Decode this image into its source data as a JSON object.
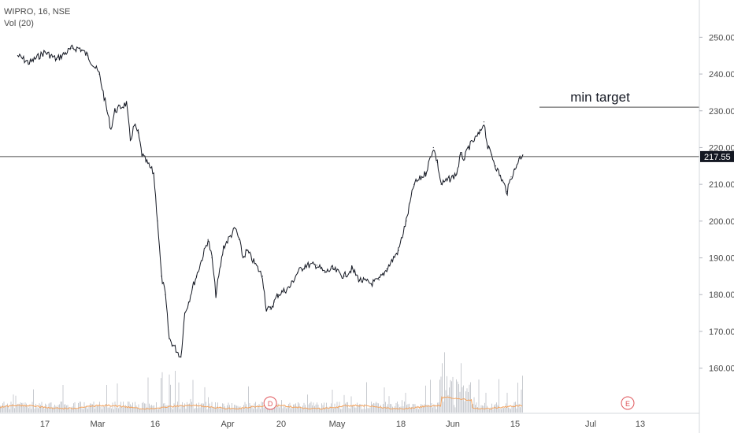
{
  "legend": {
    "symbol_line": "WIPRO, 16, NSE",
    "volume_line": "Vol (20)"
  },
  "colors": {
    "price": "#131722",
    "volume_bar": "#c8cbd0",
    "volume_ma": "#f5a35c",
    "axis_text": "#4a4a4a",
    "tag_bg": "#131722",
    "tag_text": "#ffffff",
    "event_circle": "#e0565b"
  },
  "chart_data": {
    "type": "line",
    "title": "WIPRO, 16, NSE",
    "x_axis": {
      "tick_labels": [
        "17",
        "Mar",
        "16",
        "Apr",
        "20",
        "May",
        "18",
        "Jun",
        "15",
        "Jul",
        "13"
      ]
    },
    "y_axis": {
      "tick_labels": [
        "160.00",
        "170.00",
        "180.00",
        "190.00",
        "200.00",
        "210.00",
        "220.00",
        "230.00",
        "240.00",
        "250.00"
      ],
      "ylim": [
        152,
        258
      ],
      "position": "right"
    },
    "series": [
      {
        "type": "line",
        "x": [
          "Feb 10",
          "Feb 13",
          "Feb 17",
          "Feb 20",
          "Feb 24",
          "Feb 26",
          "Feb 28",
          "Mar 2",
          "Mar 4",
          "Mar 5",
          "Mar 6",
          "Mar 9",
          "Mar 10",
          "Mar 11",
          "Mar 12",
          "Mar 13",
          "Mar 16",
          "Mar 17",
          "Mar 18",
          "Mar 19",
          "Mar 20",
          "Mar 23",
          "Mar 24",
          "Mar 25",
          "Mar 26",
          "Mar 27",
          "Mar 30",
          "Mar 31",
          "Apr 1",
          "Apr 3",
          "Apr 6",
          "Apr 7",
          "Apr 8",
          "Apr 9",
          "Apr 13",
          "Apr 14",
          "Apr 15",
          "Apr 16",
          "Apr 17",
          "Apr 20",
          "Apr 22",
          "Apr 24",
          "Apr 27",
          "Apr 29",
          "May 1",
          "May 4",
          "May 6",
          "May 8",
          "May 11",
          "May 13",
          "May 15",
          "May 18",
          "May 20",
          "May 22",
          "May 25",
          "May 27",
          "May 28",
          "May 29",
          "Jun 1",
          "Jun 2",
          "Jun 3",
          "Jun 4",
          "Jun 5",
          "Jun 8",
          "Jun 9",
          "Jun 10",
          "Jun 11",
          "Jun 12",
          "Jun 15",
          "Jun 16",
          "Jun 17",
          "Jun 18",
          "Jun 19"
        ],
        "values": [
          245,
          243,
          246,
          244,
          247,
          247,
          245,
          240,
          230,
          225,
          230,
          232,
          222,
          226,
          224,
          218,
          213,
          200,
          185,
          180,
          168,
          163,
          175,
          178,
          182,
          185,
          195,
          190,
          180,
          193,
          198,
          195,
          190,
          192,
          185,
          176,
          176,
          178,
          180,
          182,
          186,
          188,
          188,
          186,
          187,
          185,
          187,
          184,
          183,
          184,
          187,
          192,
          200,
          210,
          213,
          220,
          216,
          210,
          212,
          213,
          218,
          217,
          220,
          224,
          227,
          220,
          218,
          215,
          208,
          212,
          214,
          217,
          218
        ]
      }
    ],
    "volume": {
      "label": "Vol (20)",
      "ma_period": 20,
      "event_markers": [
        {
          "x": "Apr 15",
          "label": "D"
        },
        {
          "x": "Jul 16",
          "label": "E"
        }
      ]
    },
    "annotations": [
      {
        "type": "horizontal_line",
        "y": 217.55,
        "label": "217.55"
      },
      {
        "type": "horizontal_ray",
        "y": 231,
        "text": "min target"
      }
    ],
    "grid": false
  }
}
